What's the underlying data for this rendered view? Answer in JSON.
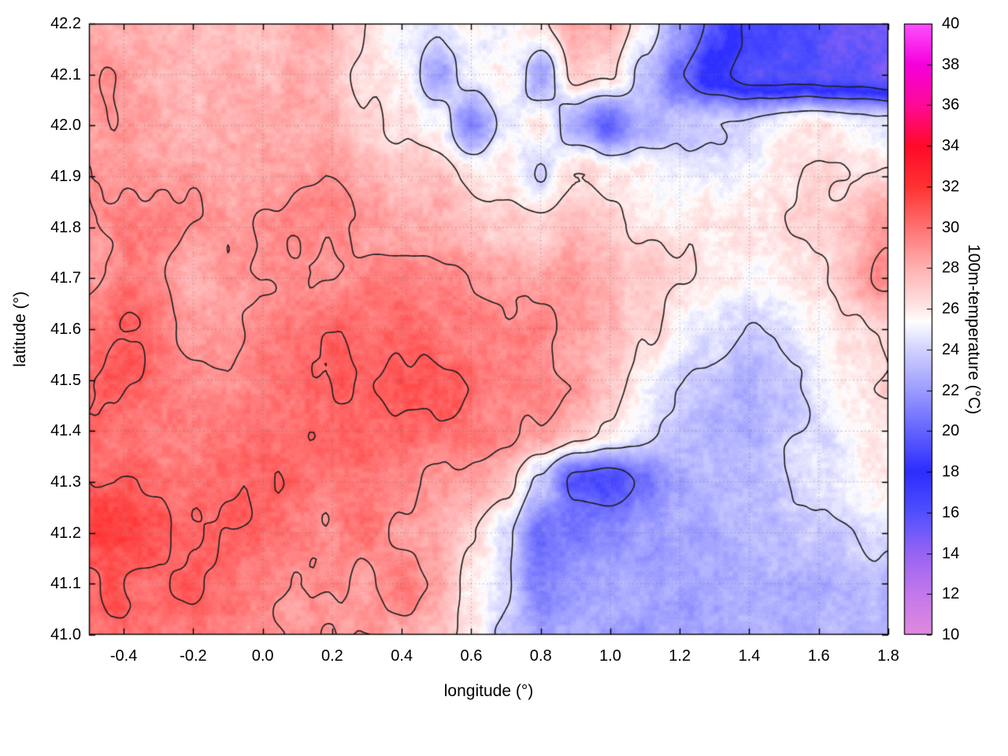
{
  "chart_data": {
    "type": "heatmap",
    "title": "",
    "xlabel": "longitude (°)",
    "ylabel": "latitude (°)",
    "colorbar_label": "100m-temperature (°C)",
    "x_range": [
      -0.5,
      1.8
    ],
    "y_range": [
      41.0,
      42.2
    ],
    "x_ticks": [
      -0.4,
      -0.2,
      0.0,
      0.2,
      0.4,
      0.6,
      0.8,
      1.0,
      1.2,
      1.4,
      1.6,
      1.8
    ],
    "x_tick_labels": [
      "-0.4",
      "-0.2",
      "0.0",
      "0.2",
      "0.4",
      "0.6",
      "0.8",
      "1.0",
      "1.2",
      "1.4",
      "1.6",
      "1.8"
    ],
    "y_ticks": [
      41.0,
      41.1,
      41.2,
      41.3,
      41.4,
      41.5,
      41.6,
      41.7,
      41.8,
      41.9,
      42.0,
      42.1,
      42.2
    ],
    "y_tick_labels": [
      "41.0",
      "41.1",
      "41.2",
      "41.3",
      "41.4",
      "41.5",
      "41.6",
      "41.7",
      "41.8",
      "41.9",
      "42.0",
      "42.1",
      "42.2"
    ],
    "colorbar_range": [
      10,
      40
    ],
    "colorbar_ticks": [
      10,
      12,
      14,
      16,
      18,
      20,
      22,
      24,
      26,
      28,
      30,
      32,
      34,
      36,
      38,
      40
    ],
    "colorbar_tick_labels": [
      "10",
      "12",
      "14",
      "16",
      "18",
      "20",
      "22",
      "24",
      "26",
      "28",
      "30",
      "32",
      "34",
      "36",
      "38",
      "40"
    ],
    "grid": "dotted",
    "legend": "none",
    "contour_levels": [
      17,
      20,
      24,
      26.5,
      29,
      30.5
    ],
    "contour_color": "#1d1d1d",
    "grid_line_color": "#787878",
    "palette_stops": [
      [
        10,
        "#e08ae0"
      ],
      [
        12,
        "#c478ec"
      ],
      [
        14,
        "#9664f4"
      ],
      [
        16,
        "#5050ff"
      ],
      [
        18,
        "#2d2dff"
      ],
      [
        20,
        "#6464ff"
      ],
      [
        22,
        "#9c9cff"
      ],
      [
        24,
        "#d2d2ff"
      ],
      [
        25.4,
        "#ffffff"
      ],
      [
        26,
        "#ffe8e8"
      ],
      [
        28,
        "#ffb2b2"
      ],
      [
        30,
        "#ff7272"
      ],
      [
        32,
        "#ff3232"
      ],
      [
        34,
        "#ff0a28"
      ],
      [
        36,
        "#ff0a96"
      ],
      [
        38,
        "#f500dc"
      ],
      [
        40,
        "#ff50ff"
      ]
    ],
    "temperature_grid": {
      "lon_start": -0.5,
      "lon_step": 0.1,
      "lat_start": 42.2,
      "lat_step": -0.1,
      "units": "°C",
      "values": [
        [
          28.5,
          28.5,
          28,
          28,
          27.5,
          27.5,
          28,
          27.5,
          26.5,
          25,
          24,
          25.5,
          25.5,
          26.5,
          28,
          27.5,
          25,
          22,
          19,
          17,
          16,
          16,
          15.5,
          15
        ],
        [
          28.5,
          28.5,
          28.5,
          28,
          28,
          27.5,
          28,
          27.5,
          26.5,
          25.5,
          22.5,
          25.5,
          26.5,
          23,
          27.5,
          26.5,
          23,
          19.5,
          17.5,
          16,
          16,
          16.5,
          16,
          14.5
        ],
        [
          28.5,
          29,
          29,
          28.5,
          28,
          28,
          28,
          28,
          27,
          26,
          25.5,
          21.5,
          25,
          26,
          22,
          19.5,
          22.5,
          23.5,
          24,
          24.5,
          25.5,
          26,
          25.5,
          25
        ],
        [
          29,
          29,
          29,
          29,
          28.5,
          28.5,
          28.5,
          28.5,
          28,
          27.5,
          27,
          26,
          26.5,
          24,
          26.5,
          26,
          25.5,
          25,
          25,
          25.5,
          26,
          26.5,
          26.5,
          26.5
        ],
        [
          29,
          29.5,
          29.5,
          29,
          29,
          29,
          29,
          29,
          28.5,
          28.5,
          28,
          27.5,
          27.5,
          27,
          28,
          27.5,
          26.5,
          26,
          25.5,
          26,
          26,
          26.5,
          27.5,
          28.5
        ],
        [
          29,
          29.5,
          29,
          28.5,
          29,
          29,
          29.5,
          29.5,
          30,
          30,
          30,
          29.5,
          29,
          29,
          29.5,
          28.5,
          27,
          26,
          25.5,
          25.5,
          26,
          26.5,
          28,
          29
        ],
        [
          29.5,
          30,
          29.5,
          29,
          29,
          29.5,
          29.5,
          30,
          30,
          30.5,
          30,
          30,
          29.5,
          29.5,
          29,
          28,
          26.5,
          25,
          24.5,
          24,
          24.5,
          25.5,
          26.5,
          27
        ],
        [
          30.5,
          31,
          30,
          29.5,
          29.5,
          30,
          30,
          30.5,
          30.5,
          30.5,
          30.5,
          30,
          29.5,
          29,
          28.5,
          27,
          25.5,
          24,
          23.5,
          23,
          24,
          25,
          26,
          26.5
        ],
        [
          30.5,
          30.5,
          30,
          30,
          30,
          30.5,
          30.5,
          30.5,
          30,
          30,
          30,
          29.5,
          29,
          28.5,
          27.5,
          26,
          24.5,
          23.5,
          23,
          23,
          23.5,
          24.5,
          25.5,
          26
        ],
        [
          31,
          31,
          30.5,
          30.5,
          30.5,
          30.5,
          30.5,
          30,
          29.5,
          29.5,
          29,
          28.5,
          27,
          23.5,
          19.5,
          18.5,
          20.5,
          23,
          23.5,
          23,
          23.5,
          24.5,
          25.5,
          25.5
        ],
        [
          31,
          31,
          31,
          31,
          30.5,
          30.5,
          30,
          29.5,
          29.5,
          29,
          28.5,
          27,
          25,
          21,
          20.5,
          21,
          22,
          22.5,
          23,
          23,
          23,
          23.5,
          24,
          24
        ],
        [
          30,
          30.5,
          30.5,
          30.5,
          30.5,
          30,
          29.5,
          29.5,
          29,
          29,
          28.5,
          26,
          24.5,
          21.5,
          22,
          22.5,
          22.5,
          22.5,
          22.5,
          22.5,
          23,
          23,
          23.5,
          23.5
        ],
        [
          29.5,
          30,
          30,
          30,
          30,
          29.5,
          29,
          29,
          28.5,
          28.5,
          28,
          26,
          23.5,
          22,
          22.5,
          22.5,
          22.5,
          22.5,
          22.5,
          22.5,
          22.5,
          23,
          23,
          23
        ]
      ]
    }
  }
}
